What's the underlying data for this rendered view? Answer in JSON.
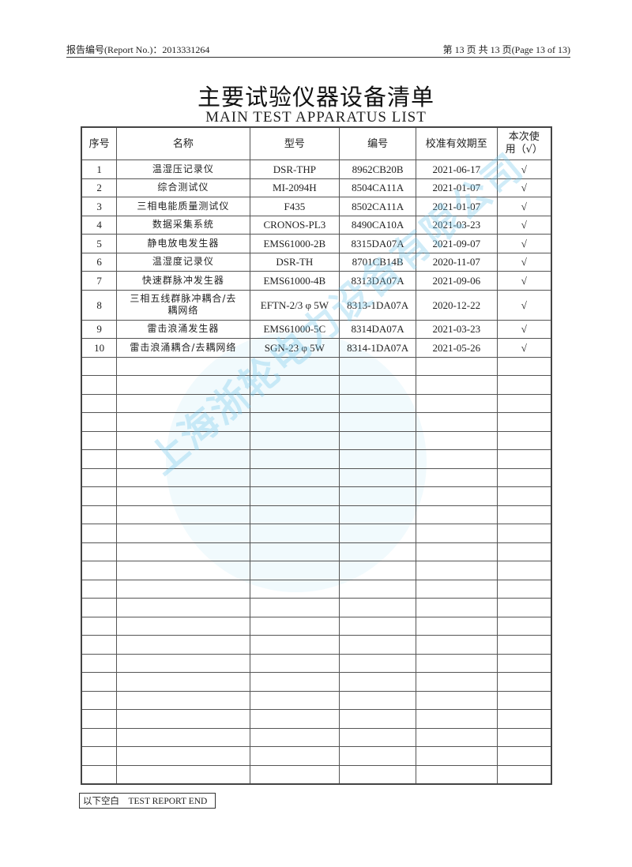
{
  "header": {
    "report_no": "报告编号(Report No.)：2013331264",
    "page": "第 13 页 共 13 页(Page 13 of 13)"
  },
  "title": "主要试验仪器设备清单",
  "subtitle": "MAIN TEST APPARATUS LIST",
  "columns": [
    "序号",
    "名称",
    "型号",
    "编号",
    "校准有效期至",
    "本次使用（√）"
  ],
  "rows": [
    [
      "1",
      "温湿压记录仪",
      "DSR-THP",
      "8962CB20B",
      "2021-06-17",
      "√"
    ],
    [
      "2",
      "综合测试仪",
      "MI-2094H",
      "8504CA11A",
      "2021-01-07",
      "√"
    ],
    [
      "3",
      "三相电能质量测试仪",
      "F435",
      "8502CA11A",
      "2021-01-07",
      "√"
    ],
    [
      "4",
      "数据采集系统",
      "CRONOS-PL3",
      "8490CA10A",
      "2021-03-23",
      "√"
    ],
    [
      "5",
      "静电放电发生器",
      "EMS61000-2B",
      "8315DA07A",
      "2021-09-07",
      "√"
    ],
    [
      "6",
      "温湿度记录仪",
      "DSR-TH",
      "8701CB14B",
      "2020-11-07",
      "√"
    ],
    [
      "7",
      "快速群脉冲发生器",
      "EMS61000-4B",
      "8313DA07A",
      "2021-09-06",
      "√"
    ],
    [
      "8",
      "三相五线群脉冲耦合/去耦网络",
      "EFTN-2/3 φ 5W",
      "8313-1DA07A",
      "2020-12-22",
      "√"
    ],
    [
      "9",
      "雷击浪涌发生器",
      "EMS61000-5C",
      "8314DA07A",
      "2021-03-23",
      "√"
    ],
    [
      "10",
      "雷击浪涌耦合/去耦网络",
      "SGN-23 φ 5W",
      "8314-1DA07A",
      "2021-05-26",
      "√"
    ]
  ],
  "watermark": "上海浙轮电力设备有限公司",
  "footer": "以下空白　TEST REPORT END"
}
